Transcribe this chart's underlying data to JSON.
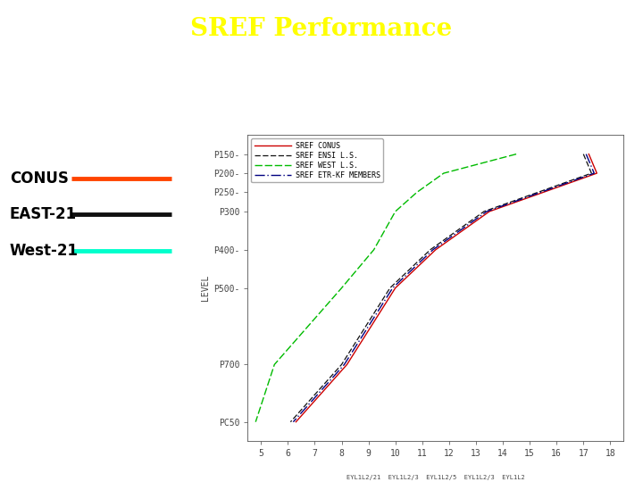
{
  "title": "SREF Performance",
  "title_color": "#FFFF00",
  "title_fontsize": 20,
  "background_color": "#ffffff",
  "pressure_levels": [
    150,
    200,
    250,
    300,
    400,
    500,
    700,
    850
  ],
  "ytick_labels": [
    "P150-",
    "P200-",
    "P250-",
    "P300",
    "P400-",
    "P500-",
    "P700",
    "PC50"
  ],
  "ylabel": "LEVEL",
  "xlabel_ticks": [
    5,
    6,
    7,
    8,
    9,
    10,
    11,
    12,
    13,
    14,
    15,
    16,
    17,
    18
  ],
  "xlabel_secondary": "EYL1L2/21  EYL1L2/3  EYL1L2/5  EYL1L2/3  EYL1L2",
  "legend_labels": [
    "SREF CONUS",
    "SREF ENSI L.S.",
    "SREF WEST L.S.",
    "SREF ETR-KF MEMBERS"
  ],
  "legend_colors": [
    "#cc0000",
    "#111111",
    "#00bb00",
    "#000080"
  ],
  "left_labels": [
    "CONUS",
    "EAST-21",
    "West-21"
  ],
  "left_line_colors": [
    "#ff4400",
    "#111111",
    "#00ffcc"
  ],
  "sref_conus": [
    17.2,
    17.5,
    15.5,
    13.5,
    11.5,
    10.0,
    8.2,
    6.3
  ],
  "sref_ensi": [
    17.0,
    17.3,
    15.3,
    13.3,
    11.3,
    9.8,
    8.0,
    6.1
  ],
  "sref_west": [
    14.5,
    11.8,
    10.8,
    10.0,
    9.2,
    8.0,
    5.5,
    4.8
  ],
  "sref_etrkf": [
    17.1,
    17.4,
    15.4,
    13.4,
    11.4,
    9.9,
    8.1,
    6.2
  ]
}
